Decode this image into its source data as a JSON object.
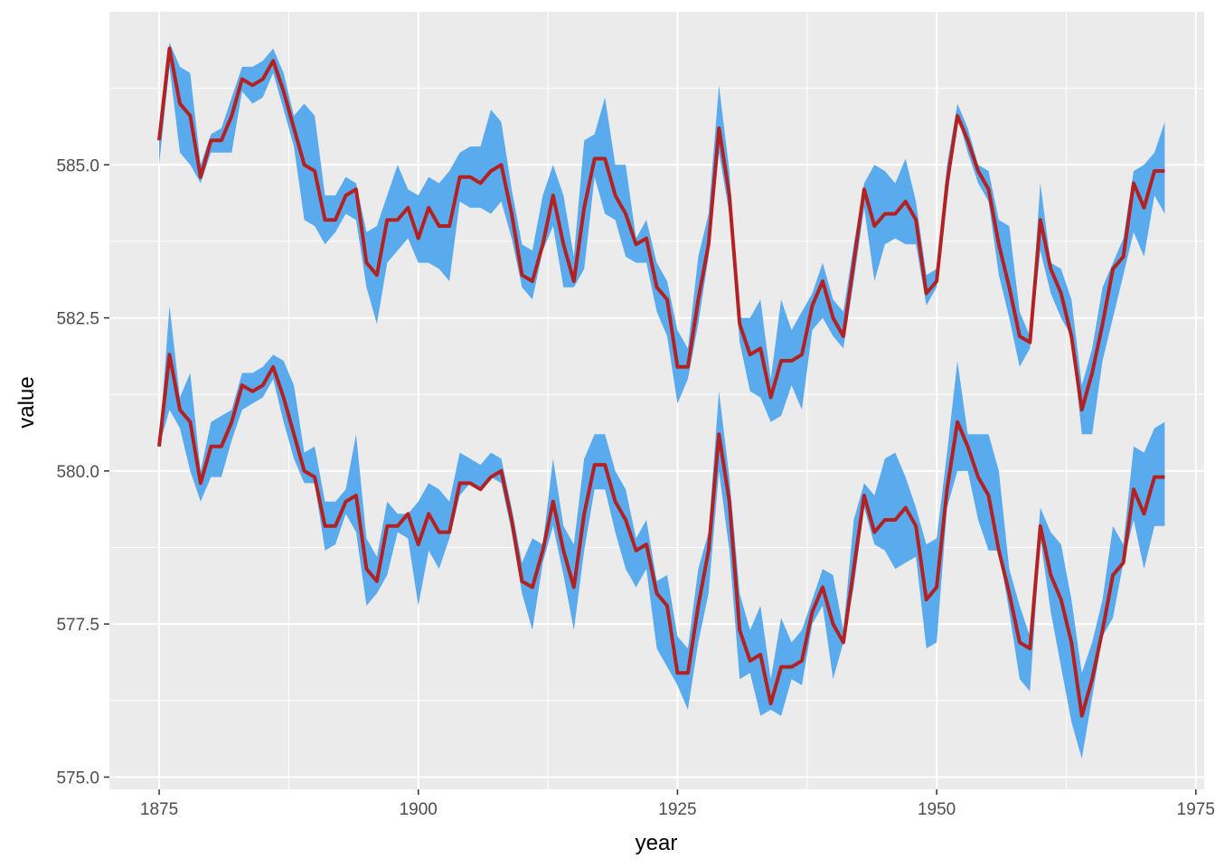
{
  "chart_data": {
    "type": "line",
    "xlabel": "year",
    "ylabel": "value",
    "xlim": [
      1870.2,
      1975.8
    ],
    "ylim": [
      574.8,
      587.5
    ],
    "x_ticks": [
      1875,
      1900,
      1925,
      1950,
      1975
    ],
    "x_tick_labels": [
      "1875",
      "1900",
      "1925",
      "1950",
      "1975"
    ],
    "y_ticks": [
      575.0,
      577.5,
      580.0,
      582.5,
      585.0
    ],
    "y_tick_labels": [
      "575.0",
      "577.5",
      "580.0",
      "582.5",
      "585.0"
    ],
    "grid": true,
    "background": "#ebebeb",
    "grid_color": "#ffffff",
    "ribbon_color": "#5aabed",
    "line_color": "#b22222",
    "x": [
      1875,
      1876,
      1877,
      1878,
      1879,
      1880,
      1881,
      1882,
      1883,
      1884,
      1885,
      1886,
      1887,
      1888,
      1889,
      1890,
      1891,
      1892,
      1893,
      1894,
      1895,
      1896,
      1897,
      1898,
      1899,
      1900,
      1901,
      1902,
      1903,
      1904,
      1905,
      1906,
      1907,
      1908,
      1909,
      1910,
      1911,
      1912,
      1913,
      1914,
      1915,
      1916,
      1917,
      1918,
      1919,
      1920,
      1921,
      1922,
      1923,
      1924,
      1925,
      1926,
      1927,
      1928,
      1929,
      1930,
      1931,
      1932,
      1933,
      1934,
      1935,
      1936,
      1937,
      1938,
      1939,
      1940,
      1941,
      1942,
      1943,
      1944,
      1945,
      1946,
      1947,
      1948,
      1949,
      1950,
      1951,
      1952,
      1953,
      1954,
      1955,
      1956,
      1957,
      1958,
      1959,
      1960,
      1961,
      1962,
      1963,
      1964,
      1965,
      1966,
      1967,
      1968,
      1969,
      1970,
      1971,
      1972
    ],
    "series": [
      {
        "values": [
          585.4,
          586.9,
          586.0,
          585.8,
          584.8,
          585.4,
          585.4,
          585.8,
          586.4,
          586.3,
          586.4,
          586.7,
          586.2,
          585.6,
          585.0,
          584.9,
          584.1,
          584.1,
          584.5,
          584.6,
          583.4,
          583.2,
          584.1,
          584.1,
          584.3,
          583.8,
          584.3,
          584.0,
          584.0,
          584.8,
          584.8,
          584.7,
          584.9,
          585.0,
          584.2,
          583.2,
          583.1,
          583.7,
          584.5,
          583.7,
          583.1,
          584.3,
          585.1,
          585.1,
          584.5,
          584.2,
          583.7,
          583.8,
          583.0,
          582.8,
          581.7,
          581.7,
          582.8,
          583.7,
          585.6,
          584.5,
          582.4,
          581.9,
          582.0,
          581.2,
          581.8,
          581.8,
          581.9,
          582.7,
          583.1,
          582.5,
          582.2,
          583.4,
          584.6,
          584.0,
          584.2,
          584.2,
          584.4,
          584.1,
          582.9,
          583.1,
          584.7,
          585.8,
          585.4,
          584.9,
          584.6,
          583.7,
          583.0,
          582.2,
          582.1,
          584.1,
          583.3,
          582.9,
          582.2,
          581.0,
          581.6,
          582.4,
          583.3,
          583.5,
          584.7,
          584.3,
          584.9,
          584.9
        ],
        "lower": [
          585.0,
          586.6,
          585.2,
          585.0,
          584.7,
          585.2,
          585.2,
          585.2,
          586.2,
          586.0,
          586.1,
          586.5,
          585.9,
          585.3,
          584.1,
          584.0,
          583.7,
          583.9,
          584.2,
          584.1,
          583.0,
          582.4,
          583.4,
          583.6,
          583.8,
          583.4,
          583.4,
          583.3,
          583.1,
          584.4,
          584.3,
          584.3,
          584.2,
          584.4,
          583.8,
          583.0,
          582.8,
          583.6,
          584.0,
          583.0,
          583.0,
          583.3,
          584.8,
          584.2,
          584.1,
          583.5,
          583.4,
          583.4,
          582.6,
          582.2,
          581.1,
          581.5,
          582.4,
          583.5,
          585.2,
          584.2,
          582.1,
          581.3,
          581.2,
          580.8,
          580.9,
          581.4,
          581.0,
          582.3,
          582.5,
          582.2,
          582.0,
          583.1,
          584.3,
          583.1,
          583.7,
          583.8,
          583.7,
          583.7,
          582.7,
          583.0,
          584.4,
          585.8,
          585.2,
          584.7,
          584.4,
          583.2,
          582.5,
          581.7,
          582.0,
          583.6,
          582.9,
          582.5,
          582.2,
          580.6,
          580.6,
          581.8,
          582.5,
          583.2,
          583.9,
          583.5,
          584.5,
          584.2
        ],
        "upper": [
          585.4,
          587.0,
          586.6,
          586.5,
          585.0,
          585.5,
          585.6,
          586.1,
          586.6,
          586.6,
          586.7,
          586.9,
          586.5,
          585.8,
          586.0,
          585.8,
          584.5,
          584.5,
          584.8,
          584.7,
          583.9,
          584.0,
          584.5,
          585.0,
          584.6,
          584.5,
          584.8,
          584.7,
          584.9,
          585.2,
          585.3,
          585.3,
          585.9,
          585.7,
          584.6,
          583.7,
          583.6,
          584.5,
          585.0,
          584.5,
          583.5,
          585.4,
          585.5,
          586.1,
          585.0,
          585.0,
          583.8,
          584.1,
          583.4,
          583.1,
          582.3,
          582.0,
          583.5,
          584.2,
          586.3,
          584.9,
          582.5,
          582.5,
          582.8,
          581.5,
          582.8,
          582.3,
          582.6,
          582.9,
          583.4,
          582.8,
          582.6,
          583.7,
          584.7,
          585.0,
          584.9,
          584.7,
          585.1,
          584.4,
          583.2,
          583.3,
          585.0,
          586.0,
          585.6,
          585.0,
          584.9,
          584.1,
          584.0,
          582.6,
          582.2,
          584.7,
          583.4,
          583.3,
          582.8,
          581.4,
          582.0,
          583.0,
          583.4,
          583.8,
          584.9,
          585.0,
          585.2,
          585.7
        ]
      },
      {
        "values": [
          580.4,
          581.9,
          581.0,
          580.8,
          579.8,
          580.4,
          580.4,
          580.8,
          581.4,
          581.3,
          581.4,
          581.7,
          581.2,
          580.6,
          580.0,
          579.9,
          579.1,
          579.1,
          579.5,
          579.6,
          578.4,
          578.2,
          579.1,
          579.1,
          579.3,
          578.8,
          579.3,
          579.0,
          579.0,
          579.8,
          579.8,
          579.7,
          579.9,
          580.0,
          579.2,
          578.2,
          578.1,
          578.7,
          579.5,
          578.7,
          578.1,
          579.3,
          580.1,
          580.1,
          579.5,
          579.2,
          578.7,
          578.8,
          578.0,
          577.8,
          576.7,
          576.7,
          577.8,
          578.7,
          580.6,
          579.5,
          577.4,
          576.9,
          577.0,
          576.2,
          576.8,
          576.8,
          576.9,
          577.7,
          578.1,
          577.5,
          577.2,
          578.4,
          579.6,
          579.0,
          579.2,
          579.2,
          579.4,
          579.1,
          577.9,
          578.1,
          579.7,
          580.8,
          580.4,
          579.9,
          579.6,
          578.7,
          578.0,
          577.2,
          577.1,
          579.1,
          578.3,
          577.9,
          577.2,
          576.0,
          576.6,
          577.4,
          578.3,
          578.5,
          579.7,
          579.3,
          579.9,
          579.9
        ],
        "lower": [
          580.4,
          581.0,
          580.7,
          580.0,
          579.5,
          579.9,
          579.9,
          580.5,
          581.0,
          581.1,
          581.2,
          581.5,
          580.8,
          580.2,
          579.8,
          579.8,
          578.7,
          578.8,
          579.3,
          579.0,
          577.8,
          578.0,
          578.3,
          579.0,
          578.9,
          577.8,
          578.7,
          578.4,
          578.9,
          579.6,
          579.8,
          579.7,
          579.9,
          579.8,
          579.0,
          578.0,
          577.4,
          578.5,
          579.1,
          578.3,
          577.4,
          578.7,
          579.7,
          579.7,
          579.0,
          578.4,
          578.1,
          578.4,
          577.1,
          576.8,
          576.5,
          576.1,
          577.2,
          578.0,
          580.0,
          578.7,
          576.6,
          576.7,
          576.0,
          576.1,
          576.0,
          576.6,
          576.5,
          577.5,
          577.8,
          576.6,
          577.2,
          578.1,
          579.4,
          578.8,
          578.7,
          578.4,
          578.5,
          578.6,
          577.1,
          577.2,
          579.4,
          580.0,
          580.0,
          579.2,
          578.7,
          578.7,
          577.7,
          576.6,
          576.4,
          578.9,
          577.7,
          576.8,
          575.9,
          575.3,
          576.3,
          577.3,
          577.6,
          578.5,
          579.2,
          578.4,
          579.1,
          579.1
        ],
        "upper": [
          580.4,
          582.7,
          581.2,
          581.6,
          580.0,
          580.8,
          580.9,
          581.0,
          581.6,
          581.6,
          581.7,
          581.9,
          581.8,
          581.4,
          580.3,
          580.4,
          579.5,
          579.5,
          579.7,
          580.6,
          578.9,
          578.6,
          579.5,
          579.3,
          579.3,
          579.5,
          579.8,
          579.7,
          579.5,
          580.3,
          580.2,
          580.1,
          580.3,
          580.2,
          579.4,
          578.5,
          578.9,
          578.8,
          580.2,
          579.1,
          578.8,
          580.2,
          580.6,
          580.6,
          580.0,
          579.7,
          578.9,
          579.2,
          578.2,
          578.3,
          577.3,
          577.1,
          578.4,
          579.0,
          581.3,
          579.9,
          578.0,
          577.4,
          577.8,
          576.6,
          577.6,
          577.2,
          577.4,
          577.9,
          578.4,
          578.3,
          577.4,
          579.2,
          579.8,
          579.6,
          580.2,
          580.3,
          579.9,
          579.4,
          578.8,
          578.9,
          580.3,
          581.8,
          580.6,
          580.6,
          580.6,
          580.0,
          578.4,
          577.8,
          577.3,
          579.4,
          579.0,
          578.8,
          577.9,
          576.7,
          577.2,
          577.9,
          579.1,
          578.8,
          580.4,
          580.3,
          580.7,
          580.8
        ]
      }
    ]
  }
}
